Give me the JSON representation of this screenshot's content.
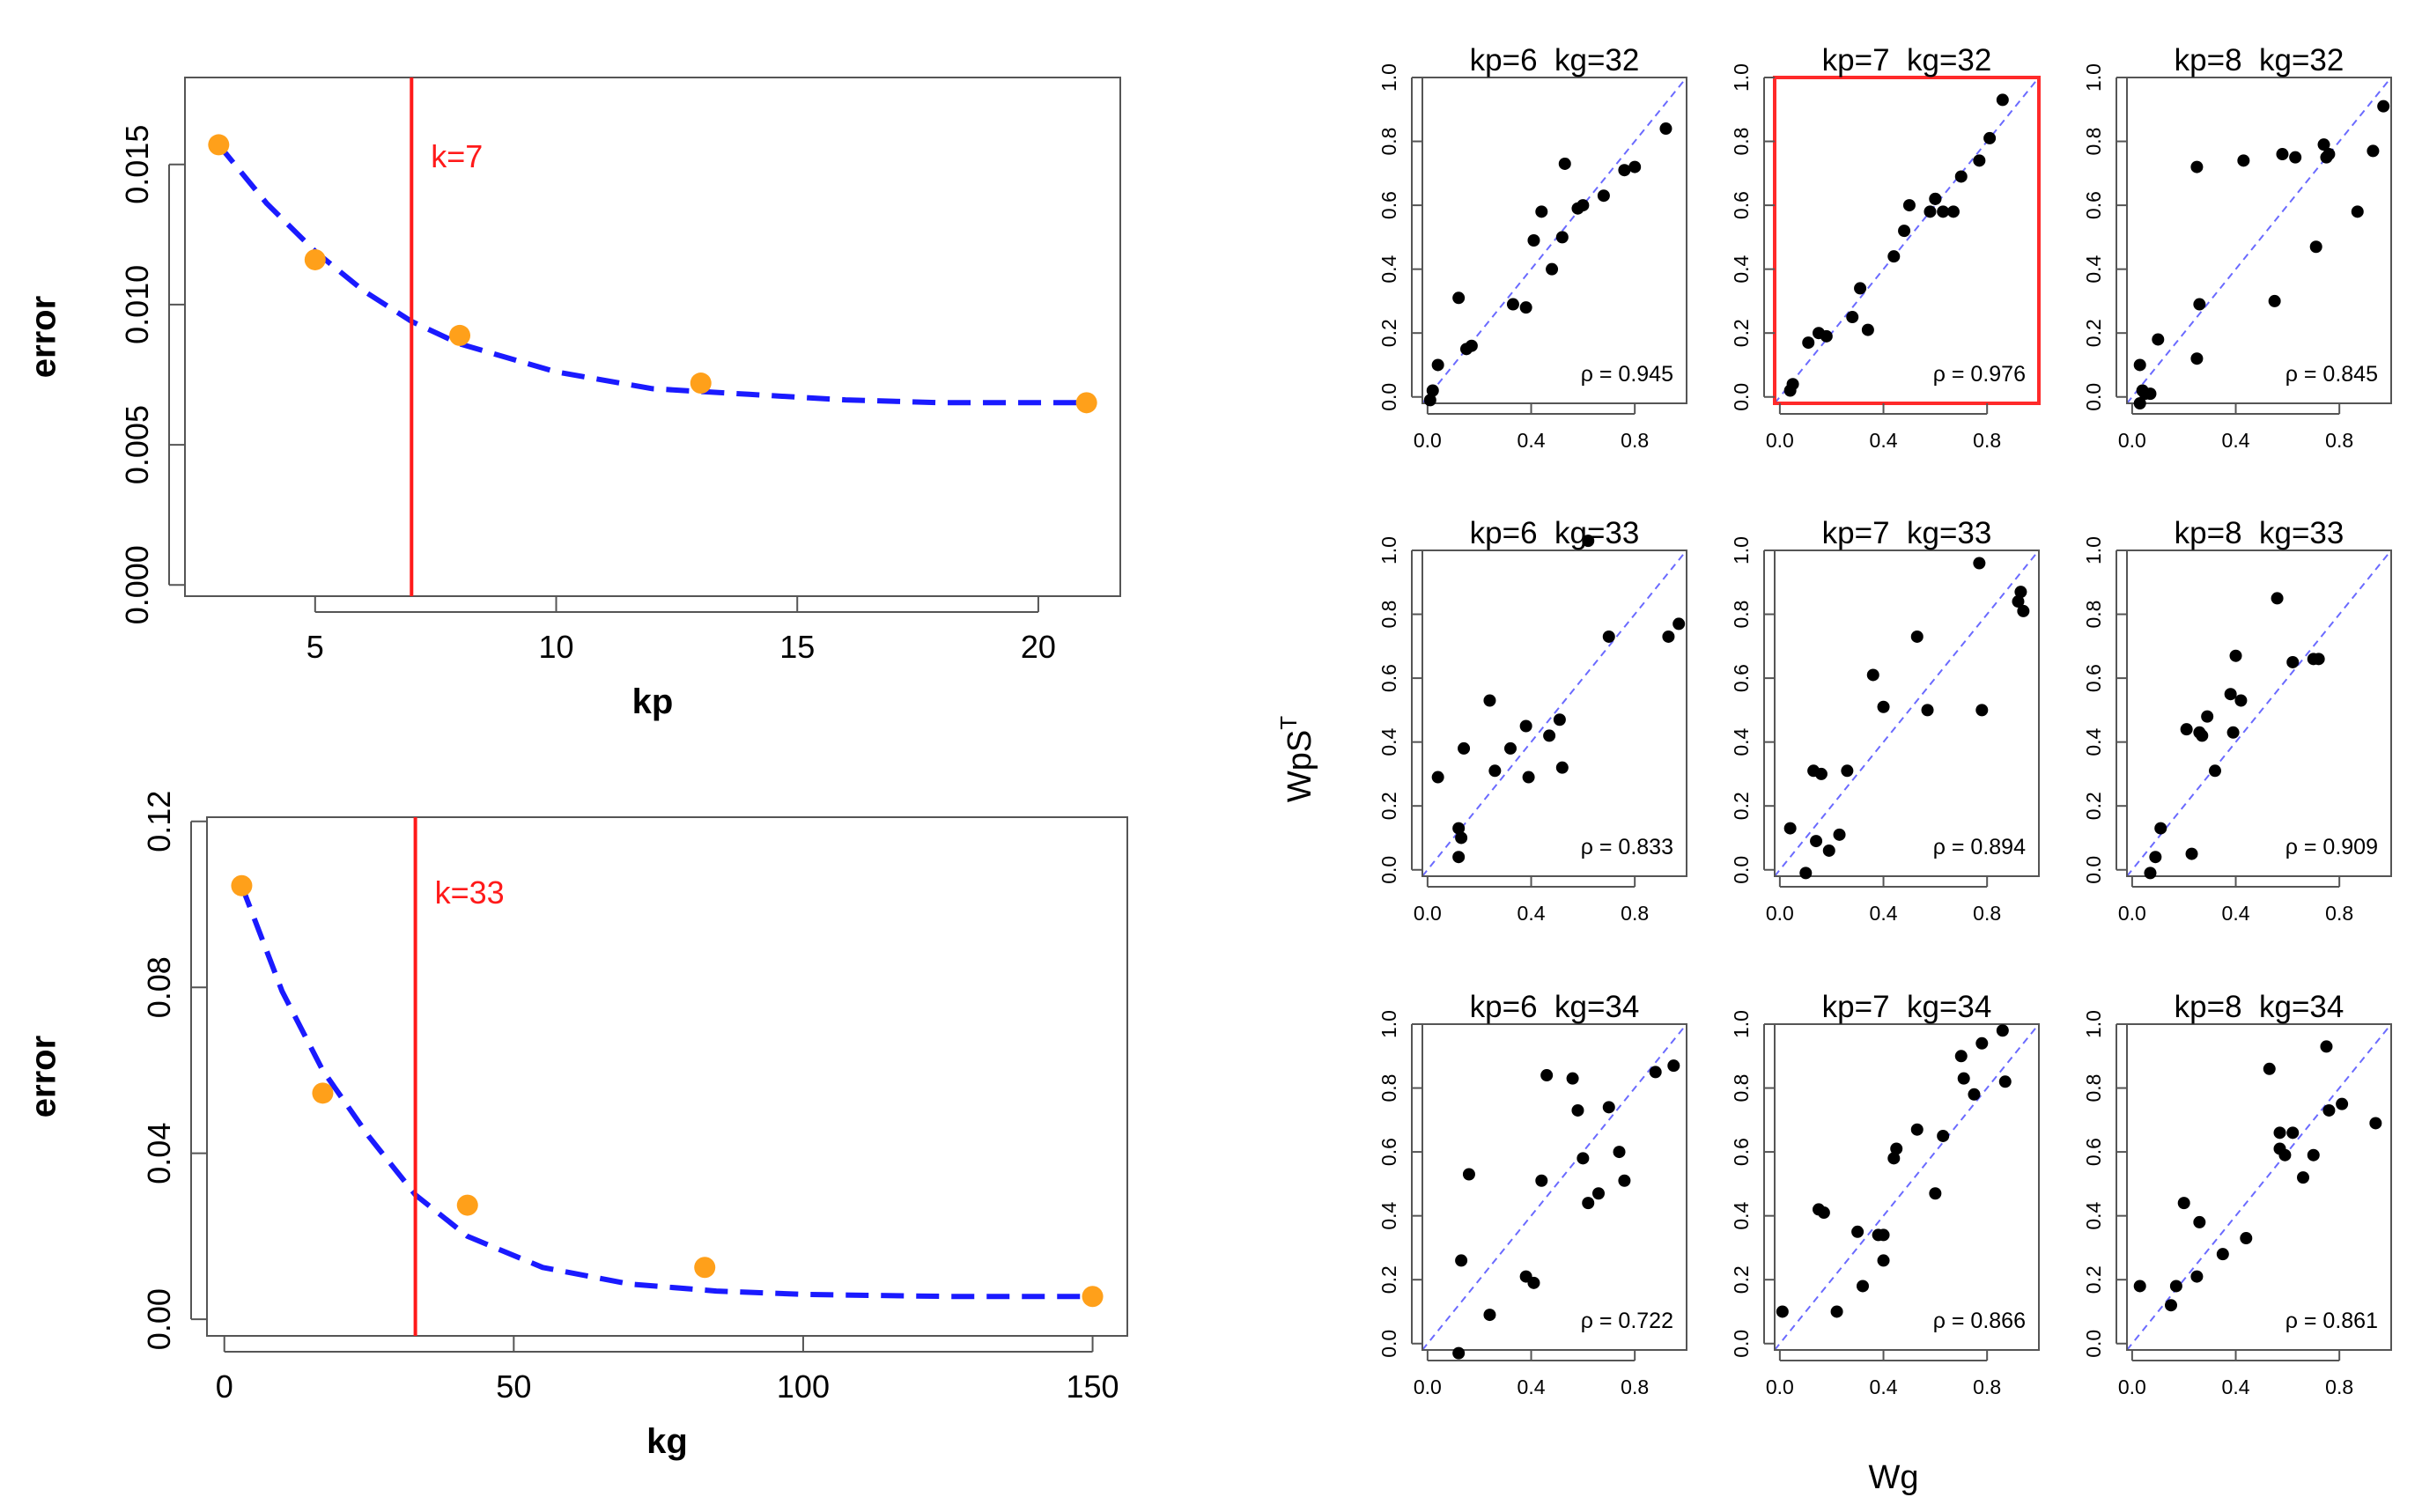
{
  "colors": {
    "curve": "#1a1aff",
    "points": "#ffa01a",
    "vline": "#ff1a1a",
    "scatter_points": "#000000",
    "diag": "#6a6aff",
    "highlight": "#ff2a2a"
  },
  "chart_data": [
    {
      "id": "kp-error",
      "type": "line",
      "xlabel": "kp",
      "ylabel": "error",
      "xlim": [
        2.3,
        21.7
      ],
      "ylim": [
        -0.0004,
        0.0181
      ],
      "xticks": [
        5,
        10,
        15,
        20
      ],
      "xtick_labels": [
        "5",
        "10",
        "15",
        "20"
      ],
      "yticks": [
        0,
        0.005,
        0.01,
        0.015
      ],
      "ytick_labels": [
        "0.000",
        "0.005",
        "0.010",
        "0.015"
      ],
      "points": {
        "x": [
          3,
          5,
          8,
          13,
          21
        ],
        "y": [
          0.0157,
          0.0116,
          0.0089,
          0.0072,
          0.0065
        ]
      },
      "fit": {
        "form": "exp_decay",
        "x": [
          3,
          4,
          5,
          6,
          7,
          8,
          10,
          12,
          14,
          16,
          18,
          21
        ],
        "y": [
          0.0157,
          0.0136,
          0.0119,
          0.0105,
          0.0094,
          0.0086,
          0.0076,
          0.007,
          0.0068,
          0.0066,
          0.0065,
          0.0065
        ]
      },
      "vline": {
        "x": 7,
        "label": "k=7"
      }
    },
    {
      "id": "kg-error",
      "type": "line",
      "xlabel": "kg",
      "ylabel": "error",
      "xlim": [
        -3,
        156
      ],
      "ylim": [
        -0.004,
        0.121
      ],
      "xticks": [
        0,
        50,
        100,
        150
      ],
      "xtick_labels": [
        "0",
        "50",
        "100",
        "150"
      ],
      "yticks": [
        0,
        0.04,
        0.08,
        0.12
      ],
      "ytick_labels": [
        "0.00",
        "0.04",
        "0.08",
        "0.12"
      ],
      "points": {
        "x": [
          3,
          17,
          42,
          83,
          150
        ],
        "y": [
          0.1045,
          0.0545,
          0.0275,
          0.0125,
          0.0055
        ]
      },
      "fit": {
        "form": "exp_decay",
        "x": [
          3,
          10,
          17,
          25,
          33,
          42,
          55,
          70,
          85,
          100,
          125,
          150
        ],
        "y": [
          0.1045,
          0.079,
          0.06,
          0.044,
          0.03,
          0.02,
          0.0125,
          0.0085,
          0.0068,
          0.006,
          0.0055,
          0.0055
        ]
      },
      "vline": {
        "x": 33,
        "label": "k=33"
      }
    },
    {
      "id": "wg-vs-wpst",
      "type": "scatter",
      "xlabel": "Wg",
      "ylabel": "WpS",
      "ylabel_sup": "T",
      "xlim": [
        -0.02,
        1.0
      ],
      "ylim": [
        -0.02,
        1.0
      ],
      "ticks": [
        0,
        0.4,
        0.8
      ],
      "tick_labels": [
        "0.0",
        "0.4",
        "0.8"
      ],
      "y_tick_labels": [
        "0.0",
        "0.2",
        "0.4",
        "0.6",
        "0.8",
        "1.0"
      ],
      "panels": [
        {
          "title": "kp=6  kg=32",
          "rho": "ρ = 0.945",
          "highlight": false,
          "x": [
            0.01,
            0.02,
            0.04,
            0.12,
            0.15,
            0.17,
            0.33,
            0.38,
            0.41,
            0.44,
            0.48,
            0.52,
            0.58,
            0.68,
            0.76,
            0.8,
            0.92,
            0.6,
            0.53
          ],
          "y": [
            -0.01,
            0.02,
            0.1,
            0.31,
            0.15,
            0.16,
            0.29,
            0.28,
            0.49,
            0.58,
            0.4,
            0.5,
            0.59,
            0.63,
            0.71,
            0.72,
            0.84,
            0.6,
            0.73
          ]
        },
        {
          "title": "kp=7  kg=32",
          "rho": "ρ = 0.976",
          "highlight": true,
          "x": [
            0.04,
            0.05,
            0.11,
            0.15,
            0.18,
            0.28,
            0.31,
            0.34,
            0.44,
            0.48,
            0.5,
            0.58,
            0.6,
            0.63,
            0.67,
            0.7,
            0.77,
            0.81,
            0.86,
            0.6
          ],
          "y": [
            0.02,
            0.04,
            0.17,
            0.2,
            0.19,
            0.25,
            0.34,
            0.21,
            0.44,
            0.52,
            0.6,
            0.58,
            0.62,
            0.58,
            0.58,
            0.69,
            0.74,
            0.81,
            0.93,
            0.62
          ]
        },
        {
          "title": "kp=8  kg=32",
          "rho": "ρ = 0.845",
          "highlight": false,
          "x": [
            0.03,
            0.04,
            0.05,
            0.07,
            0.1,
            0.25,
            0.26,
            0.25,
            0.43,
            0.55,
            0.58,
            0.63,
            0.71,
            0.74,
            0.75,
            0.76,
            0.87,
            0.93,
            0.97,
            0.03
          ],
          "y": [
            -0.02,
            0.02,
            0.01,
            0.01,
            0.18,
            0.12,
            0.29,
            0.72,
            0.74,
            0.3,
            0.76,
            0.75,
            0.47,
            0.79,
            0.75,
            0.76,
            0.58,
            0.77,
            0.91,
            0.1
          ]
        },
        {
          "title": "kp=6  kg=33",
          "rho": "ρ = 0.833",
          "highlight": false,
          "x": [
            0.04,
            0.12,
            0.13,
            0.14,
            0.24,
            0.26,
            0.32,
            0.38,
            0.39,
            0.47,
            0.51,
            0.52,
            0.62,
            0.7,
            0.93,
            0.97,
            0.12
          ],
          "y": [
            0.29,
            0.04,
            0.1,
            0.38,
            0.53,
            0.31,
            0.38,
            0.45,
            0.29,
            0.42,
            0.47,
            0.32,
            1.03,
            0.73,
            0.73,
            0.77,
            0.13
          ]
        },
        {
          "title": "kp=7  kg=33",
          "rho": "ρ = 0.894",
          "highlight": false,
          "x": [
            0.04,
            0.1,
            0.14,
            0.16,
            0.19,
            0.23,
            0.26,
            0.36,
            0.4,
            0.53,
            0.57,
            0.77,
            0.78,
            0.92,
            0.93,
            0.94,
            0.13
          ],
          "y": [
            0.13,
            -0.01,
            0.09,
            0.3,
            0.06,
            0.11,
            0.31,
            0.61,
            0.51,
            0.73,
            0.5,
            0.96,
            0.5,
            0.84,
            0.87,
            0.81,
            0.31
          ]
        },
        {
          "title": "kp=8  kg=33",
          "rho": "ρ = 0.909",
          "highlight": false,
          "x": [
            0.07,
            0.09,
            0.11,
            0.21,
            0.23,
            0.27,
            0.29,
            0.32,
            0.38,
            0.39,
            0.4,
            0.42,
            0.56,
            0.62,
            0.7,
            0.72,
            0.26
          ],
          "y": [
            -0.01,
            0.04,
            0.13,
            0.44,
            0.05,
            0.42,
            0.48,
            0.31,
            0.55,
            0.43,
            0.67,
            0.53,
            0.85,
            0.65,
            0.66,
            0.66,
            0.43
          ]
        },
        {
          "title": "kp=6  kg=34",
          "rho": "ρ = 0.722",
          "highlight": false,
          "x": [
            0.12,
            0.13,
            0.16,
            0.24,
            0.38,
            0.41,
            0.44,
            0.46,
            0.56,
            0.6,
            0.62,
            0.66,
            0.7,
            0.74,
            0.76,
            0.88,
            0.95,
            0.58
          ],
          "y": [
            -0.03,
            0.26,
            0.53,
            0.09,
            0.21,
            0.19,
            0.51,
            0.84,
            0.83,
            0.58,
            0.44,
            0.47,
            0.74,
            0.6,
            0.51,
            0.85,
            0.87,
            0.73
          ]
        },
        {
          "title": "kp=7  kg=34",
          "rho": "ρ = 0.866",
          "highlight": false,
          "x": [
            0.01,
            0.15,
            0.17,
            0.22,
            0.3,
            0.32,
            0.38,
            0.4,
            0.44,
            0.45,
            0.53,
            0.6,
            0.63,
            0.7,
            0.71,
            0.75,
            0.78,
            0.86,
            0.87,
            0.4
          ],
          "y": [
            0.1,
            0.42,
            0.41,
            0.1,
            0.35,
            0.18,
            0.34,
            0.26,
            0.58,
            0.61,
            0.67,
            0.47,
            0.65,
            0.9,
            0.83,
            0.78,
            0.94,
            0.98,
            0.82,
            0.34
          ]
        },
        {
          "title": "kp=8  kg=34",
          "rho": "ρ = 0.861",
          "highlight": false,
          "x": [
            0.03,
            0.15,
            0.17,
            0.2,
            0.25,
            0.26,
            0.35,
            0.44,
            0.53,
            0.57,
            0.59,
            0.62,
            0.66,
            0.7,
            0.75,
            0.76,
            0.81,
            0.94,
            0.57
          ],
          "y": [
            0.18,
            0.12,
            0.18,
            0.44,
            0.21,
            0.38,
            0.28,
            0.33,
            0.86,
            0.66,
            0.59,
            0.66,
            0.52,
            0.59,
            0.93,
            0.73,
            0.75,
            0.69,
            0.61
          ]
        }
      ]
    }
  ]
}
